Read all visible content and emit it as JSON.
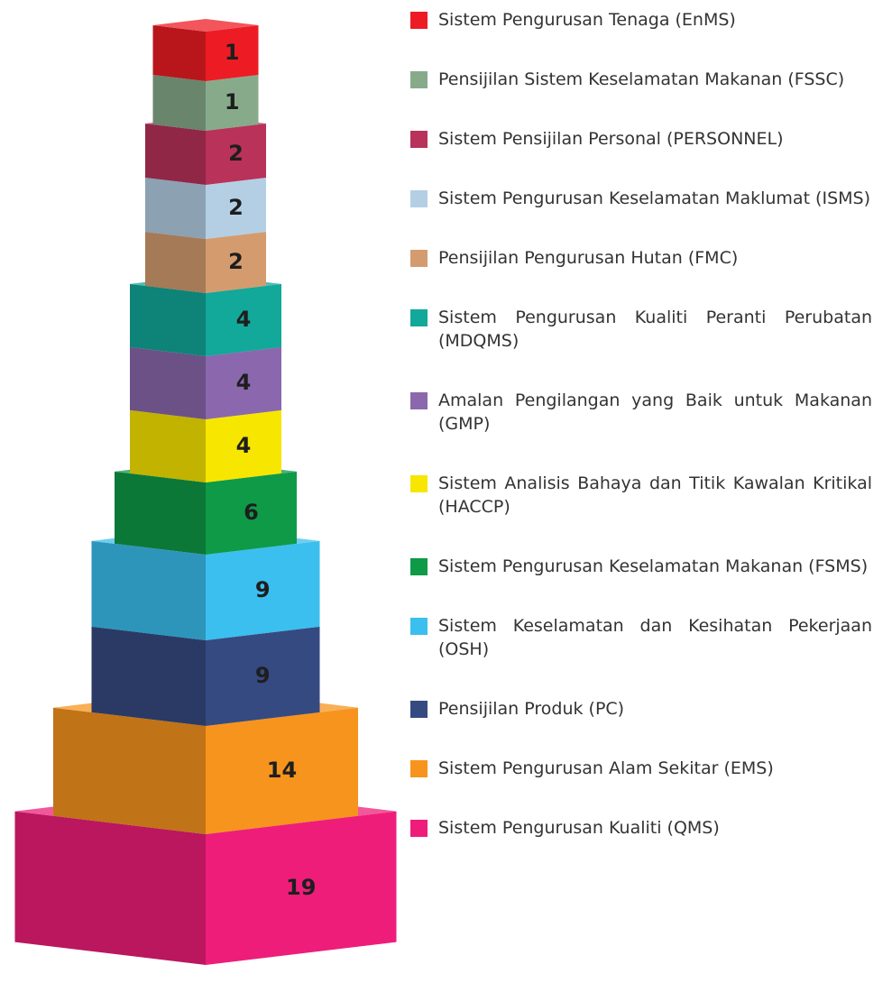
{
  "chart_data": {
    "type": "pictorial-stack",
    "series": [
      {
        "name": "Sistem Pengurusan Tenaga (EnMS)",
        "color": "#ed1c24",
        "values": [
          1
        ]
      },
      {
        "name": "Pensijilan Sistem Keselamatan Makanan (FSSC)",
        "color": "#87ab8a",
        "values": [
          1
        ]
      },
      {
        "name": "Sistem Pensijilan Personal (PERSONNEL)",
        "color": "#b8325a",
        "values": [
          2
        ]
      },
      {
        "name": "Sistem Pengurusan Keselamatan Maklumat (ISMS)",
        "color": "#b4cfe4",
        "values": [
          2
        ]
      },
      {
        "name": "Pensijilan Pengurusan Hutan (FMC)",
        "color": "#d49c6e",
        "values": [
          2
        ]
      },
      {
        "name": "Sistem Pengurusan Kualiti Peranti Perubatan (MDQMS)",
        "color": "#12a89a",
        "values": [
          4
        ]
      },
      {
        "name": "Amalan Pengilangan yang Baik untuk Makanan (GMP)",
        "color": "#8b68ad",
        "values": [
          4
        ]
      },
      {
        "name": "Sistem Analisis Bahaya dan Titik Kawalan Kritikal (HACCP)",
        "color": "#f7e600",
        "values": [
          4
        ]
      },
      {
        "name": "Sistem Pengurusan Keselamatan Makanan (FSMS)",
        "color": "#0f9a48",
        "values": [
          6
        ]
      },
      {
        "name": "Sistem Keselamatan dan Kesihatan Pekerjaan (OSH)",
        "color": "#3bbfee",
        "values": [
          9
        ]
      },
      {
        "name": "Pensijilan Produk (PC)",
        "color": "#364a82",
        "values": [
          9
        ]
      },
      {
        "name": "Sistem Pengurusan Alam Sekitar (EMS)",
        "color": "#f7941d",
        "values": [
          14
        ]
      },
      {
        "name": "Sistem Pengurusan Kualiti (QMS)",
        "color": "#ee1d7a",
        "values": [
          19
        ]
      }
    ],
    "legend": "right"
  }
}
